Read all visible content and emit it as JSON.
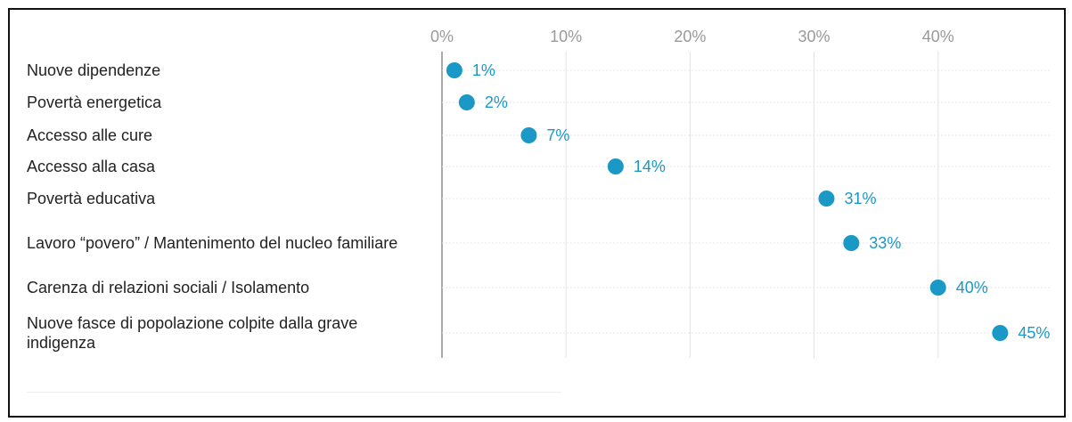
{
  "chart_data": {
    "type": "dot",
    "categories": [
      "Nuove dipendenze",
      "Povertà energetica",
      "Accesso alle cure",
      "Accesso alla casa",
      "Povertà educativa",
      "Lavoro “povero” / Mantenimento del nucleo familiare",
      "Carenza di relazioni sociali / Isolamento",
      "Nuove fasce di popolazione colpite dalla grave indigenza"
    ],
    "values": [
      1,
      2,
      7,
      14,
      31,
      33,
      40,
      45
    ],
    "value_labels": [
      "1%",
      "2%",
      "7%",
      "14%",
      "31%",
      "33%",
      "40%",
      "45%"
    ],
    "color": "#1a98c6",
    "xlim": [
      0,
      49
    ],
    "xticks": [
      {
        "value": 0,
        "label": "0%"
      },
      {
        "value": 10,
        "label": "10%"
      },
      {
        "value": 20,
        "label": "20%"
      },
      {
        "value": 30,
        "label": "30%"
      },
      {
        "value": 40,
        "label": "40%"
      }
    ],
    "grid": true
  }
}
